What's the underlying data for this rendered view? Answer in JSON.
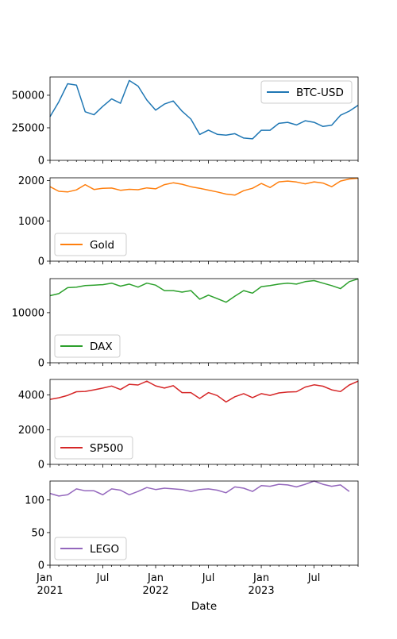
{
  "chart_data": [
    {
      "type": "line",
      "series": [
        {
          "name": "BTC-USD",
          "color": "#1f77b4",
          "values": [
            33500,
            45000,
            58800,
            57800,
            37300,
            35000,
            41500,
            47200,
            43800,
            61300,
            57000,
            46300,
            38500,
            43200,
            45600,
            37700,
            31700,
            19900,
            23200,
            20000,
            19400,
            20500,
            17100,
            16500,
            23100,
            23100,
            28400,
            29200,
            27200,
            30400,
            29200,
            26000,
            27000,
            34600,
            37800,
            42300
          ]
        }
      ],
      "x_start": "2021-01-01",
      "x_step": "month",
      "ylim": [
        0,
        64000
      ],
      "yticks": [
        0,
        25000,
        50000
      ],
      "legend_loc": "upper right"
    },
    {
      "type": "line",
      "series": [
        {
          "name": "Gold",
          "color": "#ff7f0e",
          "values": [
            1850,
            1735,
            1720,
            1770,
            1900,
            1780,
            1810,
            1815,
            1760,
            1785,
            1775,
            1820,
            1795,
            1900,
            1945,
            1910,
            1850,
            1810,
            1765,
            1720,
            1665,
            1640,
            1750,
            1810,
            1930,
            1830,
            1970,
            1990,
            1965,
            1920,
            1970,
            1940,
            1850,
            1990,
            2040,
            2060
          ]
        }
      ],
      "x_start": "2021-01-01",
      "x_step": "month",
      "ylim": [
        0,
        2070
      ],
      "yticks": [
        0,
        1000,
        2000
      ],
      "legend_loc": "lower left"
    },
    {
      "type": "line",
      "series": [
        {
          "name": "DAX",
          "color": "#2ca02c",
          "values": [
            13400,
            13800,
            15000,
            15100,
            15400,
            15500,
            15600,
            15900,
            15300,
            15700,
            15100,
            15900,
            15500,
            14400,
            14400,
            14100,
            14400,
            12700,
            13500,
            12800,
            12100,
            13300,
            14400,
            13900,
            15200,
            15400,
            15700,
            15900,
            15700,
            16200,
            16400,
            15900,
            15400,
            14800,
            16200,
            16750
          ]
        }
      ],
      "x_start": "2021-01-01",
      "x_step": "month",
      "ylim": [
        0,
        16800
      ],
      "yticks": [
        0,
        10000
      ],
      "legend_loc": "lower left"
    },
    {
      "type": "line",
      "series": [
        {
          "name": "SP500",
          "color": "#d62728",
          "values": [
            3750,
            3840,
            3980,
            4190,
            4210,
            4300,
            4400,
            4520,
            4320,
            4620,
            4580,
            4800,
            4530,
            4400,
            4540,
            4140,
            4140,
            3800,
            4140,
            3970,
            3600,
            3900,
            4080,
            3850,
            4080,
            3980,
            4120,
            4170,
            4190,
            4460,
            4590,
            4510,
            4300,
            4200,
            4580,
            4800
          ]
        }
      ],
      "x_start": "2021-01-01",
      "x_step": "month",
      "ylim": [
        0,
        4900
      ],
      "yticks": [
        0,
        2000,
        4000
      ],
      "legend_loc": "lower left"
    },
    {
      "type": "line",
      "series": [
        {
          "name": "LEGO",
          "color": "#9467bd",
          "values": [
            110,
            106,
            108,
            117,
            114,
            114,
            108,
            117,
            115,
            108,
            113,
            119,
            116,
            118,
            117,
            116,
            113,
            116,
            117,
            115,
            111,
            120,
            118,
            113,
            122,
            121,
            124,
            123,
            120,
            124,
            129,
            124,
            121,
            123,
            113
          ]
        }
      ],
      "x_start": "2021-01-01",
      "x_step": "month",
      "ylim": [
        0,
        129
      ],
      "yticks": [
        0,
        50,
        100
      ],
      "legend_loc": "lower left"
    }
  ],
  "x_axis": {
    "label": "Date",
    "month_ticks": [
      {
        "month_index": 0,
        "label": "Jan",
        "year": "2021"
      },
      {
        "month_index": 6,
        "label": "Jul",
        "year": ""
      },
      {
        "month_index": 12,
        "label": "Jan",
        "year": "2022"
      },
      {
        "month_index": 18,
        "label": "Jul",
        "year": ""
      },
      {
        "month_index": 24,
        "label": "Jan",
        "year": "2023"
      },
      {
        "month_index": 30,
        "label": "Jul",
        "year": ""
      }
    ],
    "range_months": [
      0,
      35
    ]
  }
}
